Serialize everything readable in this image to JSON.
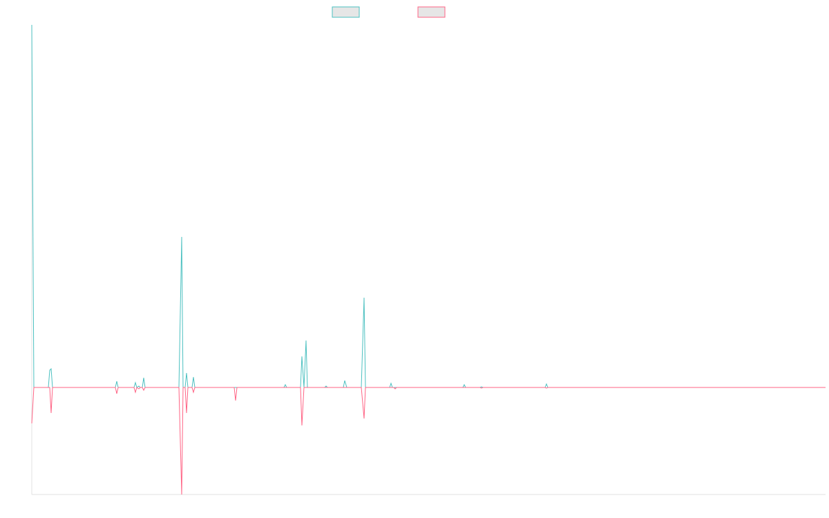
{
  "chart_data": {
    "type": "line",
    "x": [
      0,
      3,
      24,
      26,
      28,
      30,
      121,
      123,
      125,
      148,
      150,
      152,
      155,
      157,
      160,
      162,
      164,
      213,
      217,
      219,
      222,
      224,
      226,
      232,
      234,
      236,
      293,
      295,
      297,
      365,
      367,
      369,
      389,
      391,
      394,
      397,
      399,
      424,
      426,
      428,
      451,
      453,
      456,
      477,
      481,
      483,
      518,
      520,
      522,
      524,
      526,
      528,
      624,
      626,
      628,
      649,
      651,
      653,
      743,
      745,
      747,
      1149
    ],
    "xlim": [
      0,
      1149
    ],
    "ylim": [
      -155,
      525
    ],
    "series": [
      {
        "color": "#4bc0c0",
        "values": [
          525,
          0,
          0,
          25,
          27,
          0,
          0,
          9,
          0,
          0,
          7,
          0,
          2,
          0,
          0,
          14,
          0,
          0,
          218,
          0,
          0,
          21,
          0,
          0,
          15,
          0,
          0,
          0,
          0,
          0,
          4,
          0,
          0,
          45,
          0,
          68,
          0,
          0,
          2,
          0,
          0,
          10,
          0,
          0,
          130,
          0,
          0,
          6,
          0,
          0,
          0,
          0,
          0,
          4,
          0,
          0,
          1,
          0,
          0,
          5,
          0,
          0
        ]
      },
      {
        "color": "#ff6384",
        "values": [
          -52,
          0,
          0,
          0,
          -37,
          0,
          0,
          -9,
          0,
          0,
          -7,
          0,
          -2,
          0,
          0,
          -4,
          0,
          0,
          -155,
          0,
          0,
          -37,
          0,
          0,
          -7,
          0,
          0,
          -19,
          0,
          0,
          0,
          0,
          0,
          -55,
          0,
          0,
          0,
          0,
          0,
          0,
          0,
          0,
          0,
          0,
          -45,
          0,
          0,
          0,
          0,
          0,
          -2,
          0,
          0,
          0,
          0,
          0,
          -1,
          0,
          0,
          -1,
          0,
          0
        ]
      }
    ]
  }
}
